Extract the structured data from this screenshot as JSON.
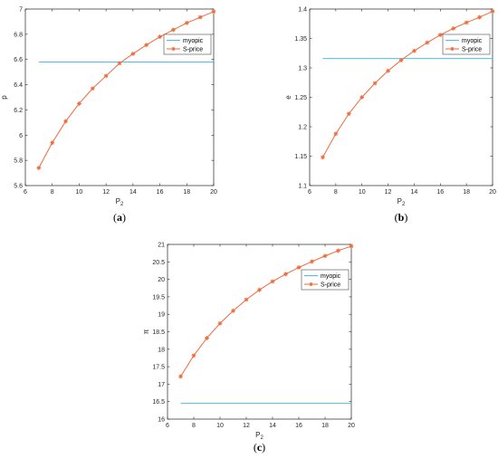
{
  "chart_data": [
    {
      "type": "line",
      "caption": "a",
      "xlabel": "P",
      "xlabel_sub": "2",
      "ylabel": "p",
      "xlim": [
        6,
        20
      ],
      "ylim": [
        5.6,
        7.0
      ],
      "xticks": [
        6,
        8,
        10,
        12,
        14,
        16,
        18,
        20
      ],
      "yticks": [
        5.6,
        5.8,
        6.0,
        6.2,
        6.4,
        6.6,
        6.8,
        7.0
      ],
      "ytick_labels": [
        "5.6",
        "5.8",
        "6",
        "6.2",
        "6.4",
        "6.6",
        "6.8",
        "7"
      ],
      "legend_position": "top-right",
      "series": [
        {
          "name": "myopic",
          "color": "#4DBEEE",
          "marker": "none",
          "x": [
            7,
            20
          ],
          "y": [
            6.58,
            6.58
          ]
        },
        {
          "name": "S-price",
          "color": "#EE6A3A",
          "marker": "asterisk",
          "x": [
            7,
            8,
            9,
            10,
            11,
            12,
            13,
            14,
            15,
            16,
            17,
            18,
            19,
            20
          ],
          "y": [
            5.74,
            5.94,
            6.11,
            6.25,
            6.37,
            6.47,
            6.57,
            6.645,
            6.715,
            6.78,
            6.835,
            6.89,
            6.935,
            6.98
          ]
        }
      ]
    },
    {
      "type": "line",
      "caption": "b",
      "xlabel": "P",
      "xlabel_sub": "2",
      "ylabel": "e",
      "xlim": [
        6,
        20
      ],
      "ylim": [
        1.1,
        1.4
      ],
      "xticks": [
        6,
        8,
        10,
        12,
        14,
        16,
        18,
        20
      ],
      "yticks": [
        1.1,
        1.15,
        1.2,
        1.25,
        1.3,
        1.35,
        1.4
      ],
      "ytick_labels": [
        "1.1",
        "1.15",
        "1.2",
        "1.25",
        "1.3",
        "1.35",
        "1.4"
      ],
      "legend_position": "top-right",
      "series": [
        {
          "name": "myopic",
          "color": "#4DBEEE",
          "marker": "none",
          "x": [
            7,
            20
          ],
          "y": [
            1.316,
            1.316
          ]
        },
        {
          "name": "S-price",
          "color": "#EE6A3A",
          "marker": "asterisk",
          "x": [
            7,
            8,
            9,
            10,
            11,
            12,
            13,
            14,
            15,
            16,
            17,
            18,
            19,
            20
          ],
          "y": [
            1.148,
            1.188,
            1.222,
            1.25,
            1.274,
            1.295,
            1.313,
            1.329,
            1.343,
            1.356,
            1.367,
            1.377,
            1.386,
            1.396
          ]
        }
      ]
    },
    {
      "type": "line",
      "caption": "c",
      "xlabel": "P",
      "xlabel_sub": "2",
      "ylabel": "π",
      "xlim": [
        6,
        20
      ],
      "ylim": [
        16,
        21
      ],
      "xticks": [
        6,
        8,
        10,
        12,
        14,
        16,
        18,
        20
      ],
      "yticks": [
        16,
        16.5,
        17,
        17.5,
        18,
        18.5,
        19,
        19.5,
        20,
        20.5,
        21
      ],
      "ytick_labels": [
        "16",
        "16.5",
        "17",
        "17.5",
        "18",
        "18.5",
        "19",
        "19.5",
        "20",
        "20.5",
        "21"
      ],
      "legend_position": "top-right",
      "series": [
        {
          "name": "myopic",
          "color": "#4DBEEE",
          "marker": "none",
          "x": [
            7,
            20
          ],
          "y": [
            16.45,
            16.45
          ]
        },
        {
          "name": "S-price",
          "color": "#EE6A3A",
          "marker": "asterisk",
          "x": [
            7,
            8,
            9,
            10,
            11,
            12,
            13,
            14,
            15,
            16,
            17,
            18,
            19,
            20
          ],
          "y": [
            17.22,
            17.82,
            18.32,
            18.74,
            19.1,
            19.42,
            19.7,
            19.94,
            20.15,
            20.34,
            20.51,
            20.67,
            20.82,
            20.95
          ]
        }
      ]
    }
  ]
}
